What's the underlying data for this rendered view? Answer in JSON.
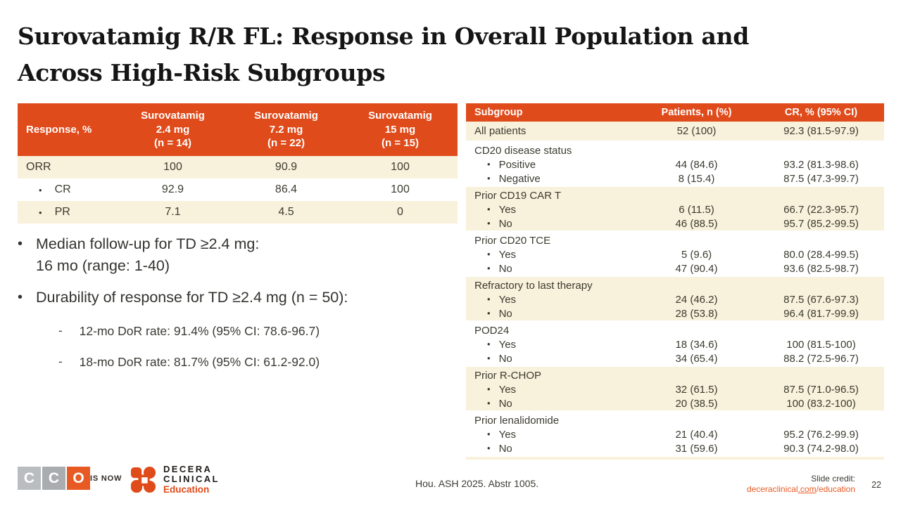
{
  "colors": {
    "accent": "#E04B1B",
    "cream": "#F8F1DB",
    "logo_orange": "#E85A24",
    "text": "#3C3B30"
  },
  "title": "Surovatamig R/R FL: Response in Overall Population and\nAcross High-Risk Subgroups",
  "response_table": {
    "columns": [
      "Response, %",
      "Surovatamig\n2.4 mg\n(n = 14)",
      "Surovatamig\n7.2 mg\n(n = 22)",
      "Surovatamig\n15 mg\n(n = 15)"
    ],
    "rows": [
      {
        "label": "ORR",
        "bullet": false,
        "values": [
          "100",
          "90.9",
          "100"
        ]
      },
      {
        "label": "CR",
        "bullet": true,
        "values": [
          "92.9",
          "86.4",
          "100"
        ]
      },
      {
        "label": "PR",
        "bullet": true,
        "values": [
          "7.1",
          "4.5",
          "0"
        ]
      }
    ]
  },
  "bullets": [
    {
      "text": "Median follow-up for TD ≥2.4 mg:\n16 mo (range: 1-40)",
      "subs": []
    },
    {
      "text": "Durability of response for TD ≥2.4 mg (n = 50):",
      "subs": [
        "12-mo DoR rate: 91.4% (95% CI: 78.6-96.7)",
        "18-mo DoR rate: 81.7% (95% CI: 61.2-92.0)"
      ]
    }
  ],
  "subgroup_table": {
    "columns": [
      "Subgroup",
      "Patients, n (%)",
      "CR, % (95% CI)"
    ],
    "groups": [
      {
        "label": "All patients",
        "patients": "52 (100)",
        "cr": "92.3 (81.5-97.9)",
        "items": []
      },
      {
        "label": "CD20 disease status",
        "items": [
          {
            "label": "Positive",
            "patients": "44 (84.6)",
            "cr": "93.2 (81.3-98.6)"
          },
          {
            "label": "Negative",
            "patients": "8 (15.4)",
            "cr": "87.5 (47.3-99.7)"
          }
        ]
      },
      {
        "label": "Prior CD19 CAR T",
        "items": [
          {
            "label": "Yes",
            "patients": "6 (11.5)",
            "cr": "66.7 (22.3-95.7)"
          },
          {
            "label": "No",
            "patients": "46 (88.5)",
            "cr": "95.7 (85.2-99.5)"
          }
        ]
      },
      {
        "label": "Prior CD20 TCE",
        "items": [
          {
            "label": "Yes",
            "patients": "5 (9.6)",
            "cr": "80.0 (28.4-99.5)"
          },
          {
            "label": "No",
            "patients": "47 (90.4)",
            "cr": "93.6 (82.5-98.7)"
          }
        ]
      },
      {
        "label": "Refractory to last therapy",
        "items": [
          {
            "label": "Yes",
            "patients": "24 (46.2)",
            "cr": "87.5 (67.6-97.3)"
          },
          {
            "label": "No",
            "patients": "28 (53.8)",
            "cr": "96.4 (81.7-99.9)"
          }
        ]
      },
      {
        "label": "POD24",
        "items": [
          {
            "label": "Yes",
            "patients": "18 (34.6)",
            "cr": "100 (81.5-100)"
          },
          {
            "label": "No",
            "patients": "34 (65.4)",
            "cr": "88.2 (72.5-96.7)"
          }
        ]
      },
      {
        "label": "Prior R-CHOP",
        "items": [
          {
            "label": "Yes",
            "patients": "32 (61.5)",
            "cr": "87.5 (71.0-96.5)"
          },
          {
            "label": "No",
            "patients": "20 (38.5)",
            "cr": "100 (83.2-100)"
          }
        ]
      },
      {
        "label": "Prior lenalidomide",
        "items": [
          {
            "label": "Yes",
            "patients": "21 (40.4)",
            "cr": "95.2 (76.2-99.9)"
          },
          {
            "label": "No",
            "patients": "31 (59.6)",
            "cr": "90.3 (74.2-98.0)"
          }
        ]
      }
    ]
  },
  "footer": {
    "cco_letters": [
      "C",
      "C",
      "O"
    ],
    "is_now": "IS NOW",
    "decera_name_line1": "DECERA",
    "decera_name_line2": "CLINICAL",
    "decera_sub": "Education",
    "source": "Hou. ASH 2025. Abstr 1005.",
    "credit_label": "Slide credit:",
    "credit_link_part1": "deceraclinical",
    "credit_link_part2": ".com",
    "credit_link_part3": "/education",
    "page_number": "22"
  }
}
